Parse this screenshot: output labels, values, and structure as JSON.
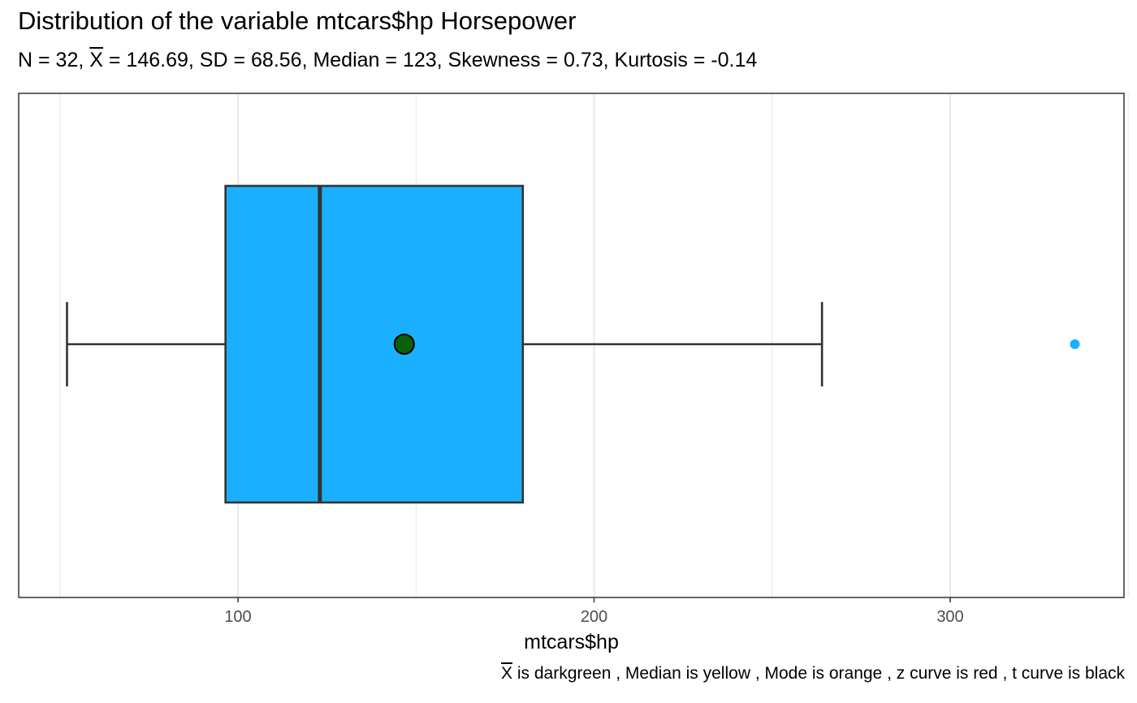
{
  "title": "Distribution of the variable mtcars$hp Horsepower",
  "subtitle": {
    "n_part": "N = 32, ",
    "xbar_symbol": "X",
    "stats_part": " = 146.69, SD = 68.56, Median = 123, Skewness = 0.73, Kurtosis = -0.14"
  },
  "caption": {
    "xbar_symbol": "X",
    "text": " is darkgreen , Median is yellow , Mode is orange , z curve is red , t curve is black"
  },
  "colors": {
    "box_fill": "#1ab0ff",
    "outline": "#333333",
    "mean_point": "#0b5f0b",
    "outlier": "#1ab0ff",
    "grid": "#ebebeb",
    "panel_border": "#333333"
  },
  "chart_data": {
    "type": "boxplot",
    "orientation": "horizontal",
    "variable": "mtcars$hp",
    "xlabel": "mtcars$hp",
    "ylabel": "",
    "xlim": [
      40,
      350
    ],
    "x_ticks": [
      100,
      200,
      300
    ],
    "grid": true,
    "stats": {
      "whisker_low": 52,
      "q1": 96.5,
      "median": 123,
      "q3": 180,
      "whisker_high": 264,
      "mean": 146.69
    },
    "outliers": [
      335
    ]
  }
}
